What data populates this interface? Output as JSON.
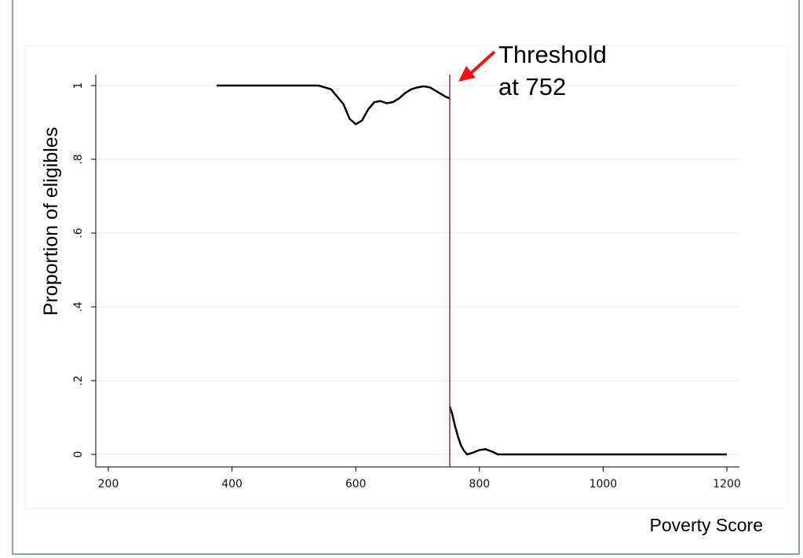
{
  "chart_data": {
    "type": "line",
    "xlabel": "Poverty Score",
    "ylabel": "Proportion of eligibles",
    "xlim": [
      200,
      1200
    ],
    "ylim": [
      0,
      1
    ],
    "x_ticks": [
      "200",
      "400",
      "600",
      "800",
      "1000",
      "1200"
    ],
    "y_ticks": [
      "0",
      ".2",
      ".4",
      ".6",
      ".8",
      "1"
    ],
    "grid": true,
    "threshold": {
      "x": 752,
      "color": "#a0244f"
    },
    "annotation": {
      "line1": "Threshold",
      "line2": "at 752",
      "arrow_color": "#e8151b"
    },
    "series": [
      {
        "segment": "below-threshold",
        "x": [
          375,
          400,
          450,
          500,
          540,
          560,
          580,
          590,
          600,
          610,
          620,
          630,
          640,
          650,
          660,
          670,
          680,
          690,
          700,
          710,
          720,
          730,
          740,
          745,
          752
        ],
        "y": [
          1.0,
          1.0,
          1.0,
          1.0,
          1.0,
          0.99,
          0.95,
          0.91,
          0.895,
          0.905,
          0.935,
          0.955,
          0.958,
          0.952,
          0.955,
          0.965,
          0.98,
          0.99,
          0.995,
          0.998,
          0.995,
          0.985,
          0.975,
          0.97,
          0.965
        ]
      },
      {
        "segment": "above-threshold",
        "x": [
          752,
          756,
          760,
          765,
          770,
          775,
          780,
          790,
          800,
          810,
          820,
          830,
          900,
          1000,
          1100,
          1200
        ],
        "y": [
          0.13,
          0.11,
          0.08,
          0.05,
          0.025,
          0.01,
          0.0,
          0.005,
          0.012,
          0.014,
          0.008,
          0.0,
          0.0,
          0.0,
          0.0,
          0.0
        ]
      }
    ],
    "line_color": "#000000"
  }
}
